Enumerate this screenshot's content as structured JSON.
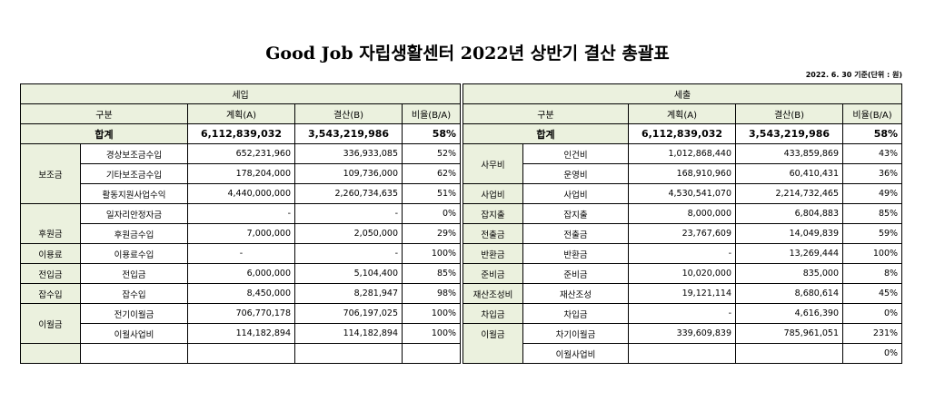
{
  "title": "Good Job 자립생활센터 2022년 상반기 결산 총괄표",
  "date_note": "2022. 6. 30 기준(단위 : 원)",
  "income": {
    "header": "세입",
    "cols": [
      "구분",
      "계획(A)",
      "결산(B)",
      "비율(B/A)"
    ],
    "total": {
      "label": "합계",
      "plan": "6,112,839,032",
      "actual": "3,543,219,986",
      "ratio": "58%"
    },
    "groups": [
      {
        "name": "보조금",
        "items": [
          {
            "label": "경상보조금수입",
            "plan": "652,231,960",
            "actual": "336,933,085",
            "ratio": "52%"
          },
          {
            "label": "기타보조금수입",
            "plan": "178,204,000",
            "actual": "109,736,000",
            "ratio": "62%"
          },
          {
            "label": "활동지원사업수익",
            "plan": "4,440,000,000",
            "actual": "2,260,734,635",
            "ratio": "51%"
          },
          {
            "label": "일자리안정자금",
            "plan": "-",
            "actual": "-",
            "ratio": "0%"
          }
        ]
      },
      {
        "name": "후원금",
        "items": [
          {
            "label": "후원금수입",
            "plan": "7,000,000",
            "actual": "2,050,000",
            "ratio": "29%"
          }
        ]
      },
      {
        "name": "이용료",
        "items": [
          {
            "label": "이용료수입",
            "plan": "-",
            "actual": "-",
            "ratio": "100%"
          }
        ]
      },
      {
        "name": "전입금",
        "items": [
          {
            "label": "전입금",
            "plan": "6,000,000",
            "actual": "5,104,400",
            "ratio": "85%"
          }
        ]
      },
      {
        "name": "잡수입",
        "items": [
          {
            "label": "잡수입",
            "plan": "8,450,000",
            "actual": "8,281,947",
            "ratio": "98%"
          }
        ]
      },
      {
        "name": "이월금",
        "items": [
          {
            "label": "전기이월금",
            "plan": "706,770,178",
            "actual": "706,197,025",
            "ratio": "100%"
          },
          {
            "label": "이월사업비",
            "plan": "114,182,894",
            "actual": "114,182,894",
            "ratio": "100%"
          }
        ]
      }
    ]
  },
  "expense": {
    "header": "세출",
    "cols": [
      "구분",
      "계획(A)",
      "결산(B)",
      "비율(B/A)"
    ],
    "total": {
      "label": "합계",
      "plan": "6,112,839,032",
      "actual": "3,543,219,986",
      "ratio": "58%"
    },
    "groups": [
      {
        "name": "사무비",
        "items": [
          {
            "label": "인건비",
            "plan": "1,012,868,440",
            "actual": "433,859,869",
            "ratio": "43%"
          },
          {
            "label": "운영비",
            "plan": "168,910,960",
            "actual": "60,410,431",
            "ratio": "36%"
          }
        ]
      },
      {
        "name": "사업비",
        "items": [
          {
            "label": "사업비",
            "plan": "4,530,541,070",
            "actual": "2,214,732,465",
            "ratio": "49%"
          }
        ]
      },
      {
        "name": "잡지출",
        "items": [
          {
            "label": "잡지출",
            "plan": "8,000,000",
            "actual": "6,804,883",
            "ratio": "85%"
          }
        ]
      },
      {
        "name": "전출금",
        "items": [
          {
            "label": "전출금",
            "plan": "23,767,609",
            "actual": "14,049,839",
            "ratio": "59%"
          }
        ]
      },
      {
        "name": "반환금",
        "items": [
          {
            "label": "반환금",
            "plan": "-",
            "actual": "13,269,444",
            "ratio": "100%"
          }
        ]
      },
      {
        "name": "준비금",
        "items": [
          {
            "label": "준비금",
            "plan": "10,020,000",
            "actual": "835,000",
            "ratio": "8%"
          }
        ]
      },
      {
        "name": "재산조성비",
        "items": [
          {
            "label": "재산조성",
            "plan": "19,121,114",
            "actual": "8,680,614",
            "ratio": "45%"
          }
        ]
      },
      {
        "name": "차입금",
        "items": [
          {
            "label": "차입금",
            "plan": "-",
            "actual": "4,616,390",
            "ratio": "0%"
          }
        ]
      },
      {
        "name": "이월금",
        "items": [
          {
            "label": "차기이월금",
            "plan": "339,609,839",
            "actual": "785,961,051",
            "ratio": "231%"
          },
          {
            "label": "이월사업비",
            "plan": "",
            "actual": "",
            "ratio": "0%"
          }
        ]
      }
    ]
  }
}
